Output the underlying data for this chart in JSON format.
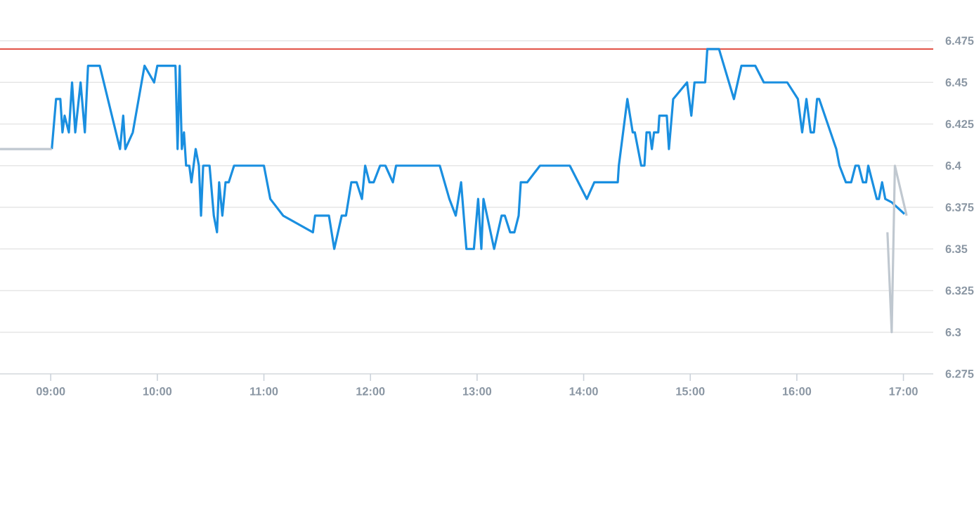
{
  "chart_data": {
    "type": "line",
    "xlim": [
      8.524,
      17.28
    ],
    "ylim": [
      6.275,
      6.475
    ],
    "xticks": [
      {
        "value": 9,
        "label": "09:00"
      },
      {
        "value": 10,
        "label": "10:00"
      },
      {
        "value": 11,
        "label": "11:00"
      },
      {
        "value": 12,
        "label": "12:00"
      },
      {
        "value": 13,
        "label": "13:00"
      },
      {
        "value": 14,
        "label": "14:00"
      },
      {
        "value": 15,
        "label": "15:00"
      },
      {
        "value": 16,
        "label": "16:00"
      },
      {
        "value": 17,
        "label": "17:00"
      }
    ],
    "yticks": [
      6.275,
      6.3,
      6.325,
      6.35,
      6.375,
      6.4,
      6.425,
      6.45,
      6.475
    ],
    "grid": "y",
    "marker": "none",
    "line_style": "solid",
    "ref_lines": [
      {
        "axis": "y",
        "value": 6.47,
        "color": "#e0483c"
      }
    ],
    "series": [
      {
        "color": "#1a8fe0",
        "x": [
          9.01,
          9.05,
          9.09,
          9.11,
          9.13,
          9.17,
          9.2,
          9.23,
          9.28,
          9.32,
          9.35,
          9.46,
          9.65,
          9.68,
          9.7,
          9.77,
          9.88,
          9.97,
          10.0,
          10.17,
          10.19,
          10.21,
          10.23,
          10.25,
          10.27,
          10.3,
          10.32,
          10.36,
          10.39,
          10.41,
          10.43,
          10.49,
          10.53,
          10.56,
          10.58,
          10.61,
          10.64,
          10.67,
          10.72,
          10.9,
          11.0,
          11.06,
          11.18,
          11.46,
          11.48,
          11.61,
          11.66,
          11.73,
          11.77,
          11.82,
          11.87,
          11.92,
          11.95,
          11.99,
          12.03,
          12.09,
          12.14,
          12.21,
          12.24,
          12.65,
          12.74,
          12.8,
          12.85,
          12.9,
          12.97,
          13.01,
          13.04,
          13.06,
          13.16,
          13.23,
          13.26,
          13.31,
          13.35,
          13.39,
          13.41,
          13.47,
          13.59,
          13.87,
          14.03,
          14.1,
          14.32,
          14.33,
          14.41,
          14.46,
          14.48,
          14.54,
          14.57,
          14.59,
          14.62,
          14.64,
          14.66,
          14.7,
          14.71,
          14.78,
          14.8,
          14.84,
          14.97,
          15.01,
          15.04,
          15.14,
          15.16,
          15.27,
          15.41,
          15.48,
          15.61,
          15.69,
          15.91,
          16.01,
          16.05,
          16.09,
          16.13,
          16.16,
          16.19,
          16.21,
          16.37,
          16.4,
          16.46,
          16.51,
          16.55,
          16.58,
          16.62,
          16.65,
          16.67,
          16.75,
          16.77,
          16.8,
          16.83,
          16.89,
          17.01
        ],
        "values": [
          6.41,
          6.44,
          6.44,
          6.42,
          6.43,
          6.42,
          6.45,
          6.42,
          6.45,
          6.42,
          6.46,
          6.46,
          6.41,
          6.43,
          6.41,
          6.42,
          6.46,
          6.45,
          6.46,
          6.46,
          6.41,
          6.46,
          6.41,
          6.42,
          6.4,
          6.4,
          6.39,
          6.41,
          6.4,
          6.37,
          6.4,
          6.4,
          6.37,
          6.36,
          6.39,
          6.37,
          6.39,
          6.39,
          6.4,
          6.4,
          6.4,
          6.38,
          6.37,
          6.36,
          6.37,
          6.37,
          6.35,
          6.37,
          6.37,
          6.39,
          6.39,
          6.38,
          6.4,
          6.39,
          6.39,
          6.4,
          6.4,
          6.39,
          6.4,
          6.4,
          6.38,
          6.37,
          6.39,
          6.35,
          6.35,
          6.38,
          6.35,
          6.38,
          6.35,
          6.37,
          6.37,
          6.36,
          6.36,
          6.37,
          6.39,
          6.39,
          6.4,
          6.4,
          6.38,
          6.39,
          6.39,
          6.4,
          6.44,
          6.42,
          6.42,
          6.4,
          6.4,
          6.42,
          6.42,
          6.41,
          6.42,
          6.42,
          6.43,
          6.43,
          6.41,
          6.44,
          6.45,
          6.43,
          6.45,
          6.45,
          6.47,
          6.47,
          6.44,
          6.46,
          6.46,
          6.45,
          6.45,
          6.44,
          6.42,
          6.44,
          6.42,
          6.42,
          6.44,
          6.44,
          6.41,
          6.4,
          6.39,
          6.39,
          6.4,
          6.4,
          6.39,
          6.39,
          6.4,
          6.38,
          6.38,
          6.39,
          6.38,
          6.378,
          6.371
        ]
      },
      {
        "color": "#c0c8d0",
        "x": [
          8.524,
          9.01,
          12.9,
          16.85,
          16.89,
          16.92,
          17.03
        ],
        "values": [
          6.41,
          6.41,
          null,
          6.36,
          6.3,
          6.4,
          6.37
        ]
      }
    ]
  }
}
